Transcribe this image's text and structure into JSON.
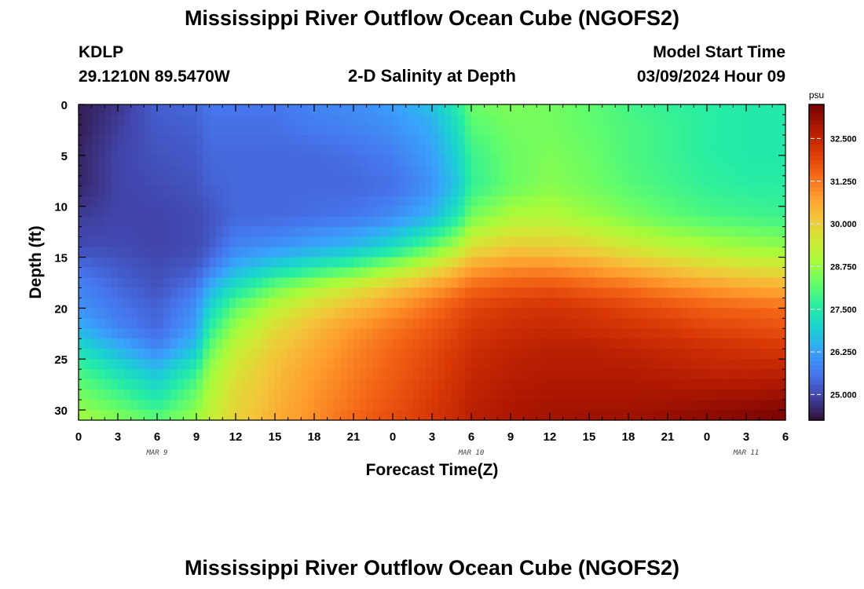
{
  "title": "Mississippi River Outflow Ocean Cube (NGOFS2)",
  "title_repeat": "Mississippi River Outflow Ocean Cube (NGOFS2)",
  "station": {
    "id": "KDLP",
    "coords": "29.1210N  89.5470W"
  },
  "subtitle": "2-D Salinity at Depth",
  "model": {
    "label": "Model Start Time",
    "value": "03/09/2024 Hour 09"
  },
  "chart_data": {
    "type": "heatmap",
    "title": "2-D Salinity at Depth",
    "xlabel": "Forecast Time(Z)",
    "ylabel": "Depth (ft)",
    "colorbar_unit": "psu",
    "x_ticks": [
      "0",
      "3",
      "6",
      "9",
      "12",
      "15",
      "18",
      "21",
      "0",
      "3",
      "6",
      "9",
      "12",
      "15",
      "18",
      "21",
      "0",
      "3",
      "6"
    ],
    "date_labels": [
      {
        "text": "MAR 9",
        "at_hour": 6
      },
      {
        "text": "MAR 10",
        "at_hour": 30
      },
      {
        "text": "MAR 11",
        "at_hour": 51
      }
    ],
    "x_range_hours": [
      0,
      54
    ],
    "y_ticks": [
      0,
      5,
      10,
      15,
      20,
      25,
      30
    ],
    "ylim": [
      0,
      31
    ],
    "y_inverted": true,
    "colorbar_ticks": [
      "25.000",
      "26.250",
      "27.500",
      "28.750",
      "30.000",
      "31.250",
      "32.500"
    ],
    "colorbar_range": [
      24.25,
      33.5
    ],
    "colormap": [
      "#30123b",
      "#4145ab",
      "#4675ed",
      "#39a2fc",
      "#1bcfd4",
      "#24eca6",
      "#61fc6c",
      "#a4fc3b",
      "#d1e834",
      "#f3c63a",
      "#fe9b2d",
      "#f36315",
      "#d93806",
      "#b11901",
      "#7a0402"
    ],
    "depth_grid": [
      0,
      2,
      5,
      8,
      11,
      14,
      16,
      18,
      20,
      22,
      24,
      26,
      28,
      30,
      31
    ],
    "time_grid": [
      0,
      3,
      6,
      9,
      10,
      12,
      15,
      18,
      21,
      24,
      27,
      29,
      30,
      33,
      36,
      39,
      42,
      45,
      48,
      51,
      54
    ],
    "salinity": [
      [
        24.4,
        24.7,
        25.3,
        25.4,
        25.6,
        25.6,
        25.6,
        25.8,
        25.9,
        26.2,
        26.7,
        27.6,
        28.3,
        28.5,
        28.4,
        28.2,
        27.9,
        27.7,
        27.6,
        27.5,
        27.5
      ],
      [
        24.4,
        24.8,
        25.2,
        25.3,
        25.5,
        25.5,
        25.5,
        25.7,
        25.8,
        26.0,
        26.4,
        27.3,
        28.1,
        28.4,
        28.4,
        28.2,
        28.0,
        27.8,
        27.6,
        27.5,
        27.5
      ],
      [
        24.5,
        24.9,
        25.1,
        25.2,
        25.4,
        25.4,
        25.4,
        25.4,
        25.5,
        25.7,
        26.2,
        27.0,
        27.8,
        28.3,
        28.5,
        28.3,
        28.0,
        27.8,
        27.6,
        27.5,
        27.5
      ],
      [
        24.5,
        24.9,
        25.0,
        25.1,
        25.3,
        25.4,
        25.4,
        25.4,
        25.4,
        25.5,
        26.0,
        26.8,
        27.7,
        28.3,
        28.6,
        28.4,
        28.1,
        27.9,
        27.7,
        27.6,
        27.6
      ],
      [
        24.8,
        24.9,
        24.9,
        25.0,
        25.1,
        25.4,
        25.4,
        25.5,
        25.6,
        25.9,
        26.5,
        27.5,
        28.4,
        29.0,
        29.1,
        28.8,
        28.5,
        28.2,
        28.0,
        27.9,
        27.8
      ],
      [
        25.0,
        25.0,
        24.9,
        25.0,
        25.2,
        25.8,
        26.0,
        26.3,
        26.6,
        27.2,
        28.2,
        29.0,
        29.7,
        30.1,
        30.1,
        29.9,
        29.5,
        29.2,
        29.0,
        28.8,
        28.7
      ],
      [
        25.5,
        25.2,
        25.0,
        25.2,
        25.6,
        26.4,
        27.0,
        27.5,
        28.0,
        28.8,
        29.6,
        30.3,
        30.7,
        31.0,
        31.0,
        30.8,
        30.5,
        30.2,
        29.9,
        29.7,
        29.6
      ],
      [
        25.8,
        25.4,
        25.1,
        25.6,
        26.4,
        27.3,
        28.3,
        29.0,
        29.6,
        30.2,
        30.8,
        31.2,
        31.5,
        31.7,
        31.8,
        31.6,
        31.4,
        31.1,
        30.9,
        30.7,
        30.6
      ],
      [
        26.0,
        25.6,
        25.3,
        26.0,
        27.0,
        28.2,
        29.2,
        29.9,
        30.4,
        30.9,
        31.4,
        31.8,
        32.0,
        32.2,
        32.3,
        32.2,
        32.0,
        31.8,
        31.6,
        31.5,
        31.4
      ],
      [
        26.5,
        25.8,
        25.4,
        26.2,
        27.6,
        28.8,
        29.8,
        30.4,
        30.9,
        31.3,
        31.7,
        32.0,
        32.2,
        32.4,
        32.5,
        32.4,
        32.3,
        32.2,
        32.0,
        31.9,
        31.8
      ],
      [
        27.2,
        26.5,
        25.8,
        26.8,
        28.2,
        29.3,
        30.1,
        30.6,
        31.1,
        31.5,
        31.9,
        32.2,
        32.4,
        32.6,
        32.7,
        32.7,
        32.6,
        32.5,
        32.4,
        32.3,
        32.2
      ],
      [
        27.9,
        27.2,
        26.6,
        27.6,
        28.7,
        29.6,
        30.3,
        30.8,
        31.2,
        31.6,
        32.0,
        32.3,
        32.5,
        32.7,
        32.8,
        32.8,
        32.8,
        32.7,
        32.6,
        32.6,
        32.6
      ],
      [
        28.3,
        27.8,
        27.2,
        28.2,
        29.0,
        29.8,
        30.4,
        30.9,
        31.3,
        31.7,
        32.1,
        32.4,
        32.6,
        32.8,
        32.9,
        32.9,
        32.9,
        32.9,
        32.9,
        32.9,
        33.0
      ],
      [
        28.7,
        28.3,
        27.8,
        28.6,
        29.2,
        29.9,
        30.5,
        31.0,
        31.4,
        31.8,
        32.2,
        32.5,
        32.7,
        32.9,
        33.0,
        33.0,
        33.0,
        33.1,
        33.2,
        33.3,
        33.4
      ],
      [
        28.9,
        28.6,
        28.2,
        28.8,
        29.3,
        30.0,
        30.6,
        31.0,
        31.5,
        31.9,
        32.2,
        32.5,
        32.7,
        32.9,
        33.0,
        33.1,
        33.1,
        33.2,
        33.3,
        33.4,
        33.5
      ]
    ]
  }
}
